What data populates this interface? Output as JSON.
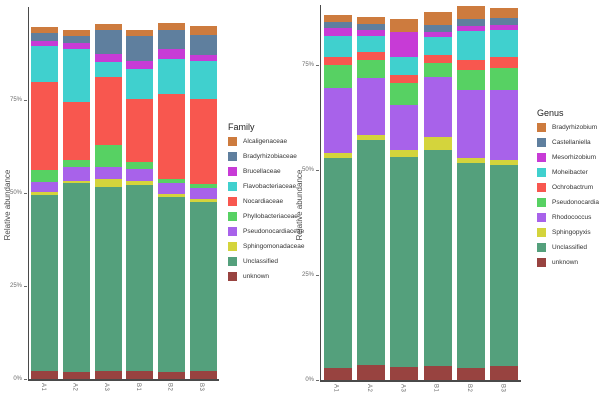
{
  "figure": {
    "background": "#ffffff",
    "y_axis_title": "Relative abundance"
  },
  "chart_data": [
    {
      "type": "bar",
      "stacked": true,
      "units": "percent",
      "title": "",
      "xlabel": "",
      "ylabel": "Relative abundance",
      "ylim": [
        0,
        100
      ],
      "grid": false,
      "legend_position": "right",
      "legend_title": "Family",
      "yticks": [
        {
          "value": 0,
          "label": "0%"
        },
        {
          "value": 25,
          "label": "25%"
        },
        {
          "value": 50,
          "label": "50%"
        },
        {
          "value": 75,
          "label": "75%"
        }
      ],
      "categories": [
        "A1",
        "A2",
        "A3",
        "B1",
        "B2",
        "B3"
      ],
      "series": [
        {
          "name": "Alcaligenaceae",
          "color": "#cd7b3e",
          "values": [
            1.6,
            1.6,
            1.6,
            1.6,
            1.9,
            2.4
          ]
        },
        {
          "name": "Bradyrhizobiaceae",
          "color": "#5f7f9e",
          "values": [
            2.2,
            1.9,
            6.5,
            6.5,
            5.1,
            5.4
          ]
        },
        {
          "name": "Brucellaceae",
          "color": "#c73bd6",
          "values": [
            1.3,
            1.6,
            2.2,
            2.2,
            2.7,
            1.6
          ]
        },
        {
          "name": "Flavobacteriaceae",
          "color": "#40d0ce",
          "values": [
            9.7,
            14.3,
            4.0,
            8.1,
            9.4,
            10.2
          ]
        },
        {
          "name": "Nocardiaceae",
          "color": "#f8574f",
          "values": [
            23.5,
            15.6,
            18.3,
            17.0,
            22.9,
            22.9
          ]
        },
        {
          "name": "Phyllobacteriaceae",
          "color": "#57d163",
          "values": [
            3.2,
            1.9,
            5.9,
            1.9,
            1.1,
            1.1
          ]
        },
        {
          "name": "Pseudonocardiaceae",
          "color": "#a862ea",
          "values": [
            2.7,
            3.8,
            3.2,
            3.2,
            3.0,
            3.0
          ]
        },
        {
          "name": "Sphingomonadaceae",
          "color": "#d4d43c",
          "values": [
            0.8,
            0.5,
            2.2,
            1.1,
            0.8,
            0.8
          ]
        },
        {
          "name": "Unclassified",
          "color": "#54a07c",
          "values": [
            47.4,
            50.7,
            49.3,
            49.9,
            46.9,
            45.3
          ]
        },
        {
          "name": "unknown",
          "color": "#984340",
          "values": [
            2.2,
            1.9,
            2.2,
            2.2,
            1.9,
            2.2
          ]
        }
      ]
    },
    {
      "type": "bar",
      "stacked": true,
      "units": "percent",
      "title": "",
      "xlabel": "",
      "ylabel": "Relative abundance",
      "ylim": [
        0,
        100
      ],
      "grid": false,
      "legend_position": "right",
      "legend_title": "Genus",
      "yticks": [
        {
          "value": 0,
          "label": "0%"
        },
        {
          "value": 25,
          "label": "25%"
        },
        {
          "value": 50,
          "label": "50%"
        },
        {
          "value": 75,
          "label": "75%"
        }
      ],
      "categories": [
        "A1",
        "A2",
        "A3",
        "B1",
        "B2",
        "B3"
      ],
      "series": [
        {
          "name": "Bradyrhizobium",
          "color": "#cd7b3e",
          "values": [
            1.7,
            1.7,
            3.1,
            3.1,
            3.1,
            2.4
          ]
        },
        {
          "name": "Castellaniella",
          "color": "#5f7f9e",
          "values": [
            1.4,
            1.4,
            0.0,
            1.7,
            1.7,
            1.7
          ]
        },
        {
          "name": "Mesorhizobium",
          "color": "#c73bd6",
          "values": [
            2.1,
            1.4,
            6.0,
            1.2,
            1.2,
            1.2
          ]
        },
        {
          "name": "Moheibacter",
          "color": "#40d0ce",
          "values": [
            4.8,
            3.8,
            4.3,
            4.3,
            6.7,
            6.4
          ]
        },
        {
          "name": "Ochrobactrum",
          "color": "#f8574f",
          "values": [
            1.9,
            1.9,
            1.9,
            1.9,
            2.4,
            2.6
          ]
        },
        {
          "name": "Pseudonocardia",
          "color": "#57d163",
          "values": [
            5.5,
            4.3,
            5.2,
            3.3,
            4.8,
            5.2
          ]
        },
        {
          "name": "Rhodococcus",
          "color": "#a862ea",
          "values": [
            15.5,
            13.6,
            10.7,
            14.3,
            16.2,
            16.7
          ]
        },
        {
          "name": "Sphingopyxis",
          "color": "#d4d43c",
          "values": [
            1.2,
            1.2,
            1.7,
            3.1,
            1.2,
            1.2
          ]
        },
        {
          "name": "Unclassified",
          "color": "#54a07c",
          "values": [
            50.0,
            53.6,
            50.0,
            51.4,
            48.8,
            47.9
          ]
        },
        {
          "name": "unknown",
          "color": "#984340",
          "values": [
            2.9,
            3.6,
            3.1,
            3.3,
            2.9,
            3.3
          ]
        }
      ]
    }
  ]
}
